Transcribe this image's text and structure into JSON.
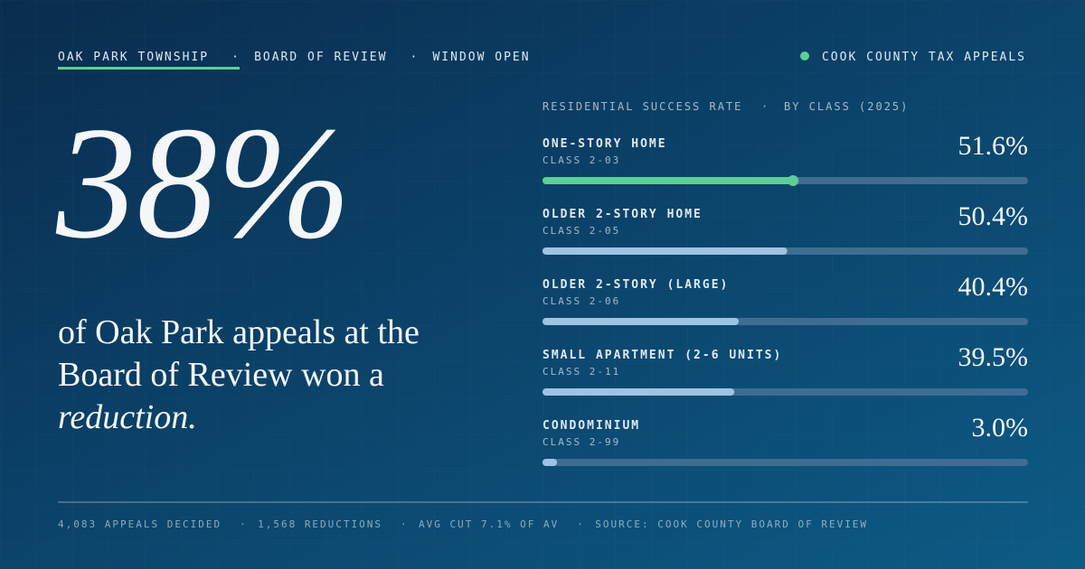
{
  "header": {
    "breadcrumbs": [
      "OAK PARK TOWNSHIP",
      "BOARD OF REVIEW",
      "WINDOW OPEN"
    ],
    "brand": "COOK COUNTY TAX APPEALS"
  },
  "hero": {
    "stat": "38%",
    "text": "of Oak Park appeals at the Board of Review won a",
    "emphasis": "reduction."
  },
  "chart_data": {
    "type": "bar",
    "title": "RESIDENTIAL SUCCESS RATE",
    "subtitle": "BY CLASS (2025)",
    "categories": [
      "ONE-STORY HOME",
      "OLDER 2-STORY HOME",
      "OLDER 2-STORY (LARGE)",
      "SMALL APARTMENT (2-6 UNITS)",
      "CONDOMINIUM"
    ],
    "sublabels": [
      "CLASS 2-03",
      "CLASS 2-05",
      "CLASS 2-06",
      "CLASS 2-11",
      "CLASS 2-99"
    ],
    "values": [
      51.6,
      50.4,
      40.4,
      39.5,
      3.0
    ],
    "value_labels": [
      "51.6%",
      "50.4%",
      "40.4%",
      "39.5%",
      "3.0%"
    ],
    "xlim": [
      0,
      100
    ],
    "color": "#9fc3e2",
    "highlight": 0,
    "highlight_color": "#5ccf95"
  },
  "footer": [
    "4,083 APPEALS DECIDED",
    "1,568 REDUCTIONS",
    "AVG CUT 7.1% OF AV",
    "SOURCE: COOK COUNTY BOARD OF REVIEW"
  ]
}
